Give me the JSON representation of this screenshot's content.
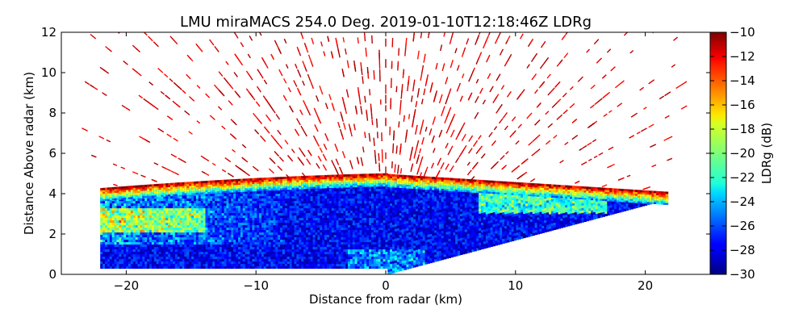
{
  "chart_data": {
    "type": "heatmap",
    "title": "LMU miraMACS 254.0 Deg. 2019-01-10T12:18:46Z  LDRg",
    "xlabel": "Distance from radar (km)",
    "ylabel": "Distance Above radar  (km)",
    "xlim": [
      -25,
      25
    ],
    "ylim": [
      0,
      12
    ],
    "xticks": [
      -20,
      -10,
      0,
      10,
      20
    ],
    "xtick_labels": [
      "−20",
      "−10",
      "0",
      "10",
      "20"
    ],
    "yticks": [
      0,
      2,
      4,
      6,
      8,
      10,
      12
    ],
    "ytick_labels": [
      "0",
      "2",
      "4",
      "6",
      "8",
      "10",
      "12"
    ],
    "grid": false,
    "scan_type": "RHI",
    "azimuth_deg": 254.0,
    "timestamp": "2019-01-10T12:18:46Z",
    "variable": "LDRg",
    "colorbar": {
      "label": "LDRg (dB)",
      "min": -30,
      "max": -10,
      "ticks": [
        -10,
        -12,
        -14,
        -16,
        -18,
        -20,
        -22,
        -24,
        -26,
        -28,
        -30
      ],
      "tick_labels": [
        "−10",
        "−12",
        "−14",
        "−16",
        "−18",
        "−20",
        "−22",
        "−24",
        "−26",
        "−28",
        "−30"
      ],
      "colormap": "jet"
    },
    "regions": [
      {
        "name": "cloud-layer",
        "x_range": [
          -22,
          22
        ],
        "top_height_km_at_left": 4.0,
        "top_height_km_at_center": 4.7,
        "top_height_km_at_right": 3.8,
        "ldr_db_typical": -27
      },
      {
        "name": "cloud-top-layer",
        "height_range_km": [
          3.8,
          4.8
        ],
        "ldr_db_typical": -13
      },
      {
        "name": "sparse-noise-above-cloud",
        "height_range_km": [
          4.8,
          12
        ],
        "ldr_db_typical": -10
      }
    ]
  }
}
